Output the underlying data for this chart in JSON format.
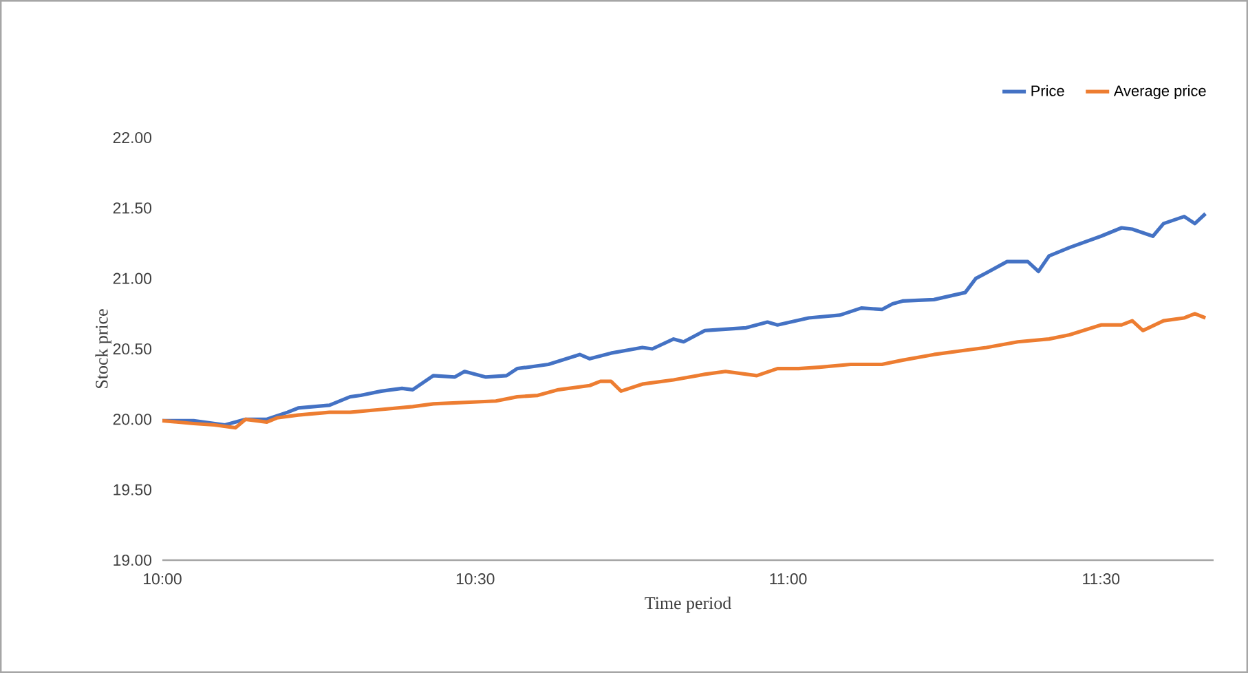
{
  "chart_data": {
    "type": "line",
    "xlabel": "Time period",
    "ylabel": "Stock price",
    "xlim": [
      10,
      11.68
    ],
    "ylim": [
      19,
      22
    ],
    "xticks": [
      {
        "value": 10,
        "label": "10:00"
      },
      {
        "value": 10.5,
        "label": "10:30"
      },
      {
        "value": 11,
        "label": "11:00"
      },
      {
        "value": 11.5,
        "label": "11:30"
      }
    ],
    "yticks": [
      {
        "value": 19,
        "label": "19.00"
      },
      {
        "value": 19.5,
        "label": "19.50"
      },
      {
        "value": 20,
        "label": "20.00"
      },
      {
        "value": 20.5,
        "label": "20.50"
      },
      {
        "value": 21,
        "label": "21.00"
      },
      {
        "value": 21.5,
        "label": "21.50"
      },
      {
        "value": 22,
        "label": "22.00"
      }
    ],
    "legend": "top right",
    "grid": false,
    "line_style": "solid",
    "series": [
      {
        "name": "Price",
        "color": "#4472c4",
        "x": [
          10,
          10.05,
          10.1,
          10.133,
          10.167,
          10.2,
          10.217,
          10.267,
          10.3,
          10.317,
          10.35,
          10.383,
          10.4,
          10.433,
          10.467,
          10.483,
          10.517,
          10.55,
          10.567,
          10.617,
          10.667,
          10.683,
          10.717,
          10.767,
          10.783,
          10.817,
          10.833,
          10.867,
          10.933,
          10.967,
          10.983,
          11.033,
          11.083,
          11.117,
          11.15,
          11.167,
          11.183,
          11.233,
          11.283,
          11.3,
          11.317,
          11.35,
          11.383,
          11.4,
          11.417,
          11.45,
          11.5,
          11.533,
          11.55,
          11.583,
          11.6,
          11.633,
          11.65,
          11.667
        ],
        "values": [
          19.99,
          19.99,
          19.96,
          20.0,
          20.0,
          20.05,
          20.08,
          20.1,
          20.16,
          20.17,
          20.2,
          20.22,
          20.21,
          20.31,
          20.3,
          20.34,
          20.3,
          20.31,
          20.36,
          20.39,
          20.46,
          20.43,
          20.47,
          20.51,
          20.5,
          20.57,
          20.55,
          20.63,
          20.65,
          20.69,
          20.67,
          20.72,
          20.74,
          20.79,
          20.78,
          20.82,
          20.84,
          20.85,
          20.9,
          21.0,
          21.04,
          21.12,
          21.12,
          21.05,
          21.16,
          21.22,
          21.3,
          21.36,
          21.35,
          21.3,
          21.39,
          21.44,
          21.39,
          21.46
        ]
      },
      {
        "name": "Average price",
        "color": "#ed7d31",
        "x": [
          10,
          10.05,
          10.083,
          10.117,
          10.133,
          10.167,
          10.183,
          10.217,
          10.267,
          10.3,
          10.35,
          10.4,
          10.433,
          10.483,
          10.533,
          10.567,
          10.6,
          10.633,
          10.683,
          10.7,
          10.717,
          10.733,
          10.767,
          10.817,
          10.867,
          10.9,
          10.95,
          10.983,
          11.017,
          11.05,
          11.1,
          11.15,
          11.183,
          11.233,
          11.283,
          11.317,
          11.367,
          11.417,
          11.45,
          11.5,
          11.533,
          11.55,
          11.567,
          11.6,
          11.633,
          11.65,
          11.667
        ],
        "values": [
          19.99,
          19.97,
          19.96,
          19.94,
          20.0,
          19.98,
          20.01,
          20.03,
          20.05,
          20.05,
          20.07,
          20.09,
          20.11,
          20.12,
          20.13,
          20.16,
          20.17,
          20.21,
          20.24,
          20.27,
          20.27,
          20.2,
          20.25,
          20.28,
          20.32,
          20.34,
          20.31,
          20.36,
          20.36,
          20.37,
          20.39,
          20.39,
          20.42,
          20.46,
          20.49,
          20.51,
          20.55,
          20.57,
          20.6,
          20.67,
          20.67,
          20.7,
          20.63,
          20.7,
          20.72,
          20.75,
          20.72
        ]
      }
    ]
  }
}
